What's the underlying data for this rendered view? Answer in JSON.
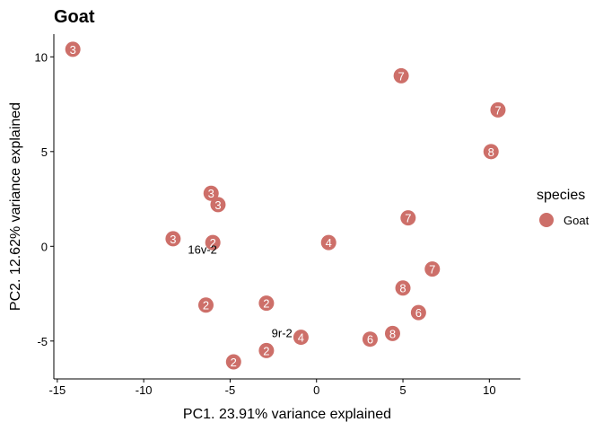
{
  "chart_data": {
    "type": "scatter",
    "title": "Goat",
    "xlabel": "PC1. 23.91% variance explained",
    "ylabel": "PC2. 12.62% variance explained",
    "xlim": [
      -15.2,
      11.8
    ],
    "ylim": [
      -7.0,
      11.2
    ],
    "xticks": [
      -15,
      -10,
      -5,
      0,
      5,
      10
    ],
    "yticks": [
      -5,
      0,
      5,
      10
    ],
    "grid": false,
    "point_color": "#CD6F69",
    "legend": {
      "title": "species",
      "entries": [
        {
          "label": "Goat",
          "color": "#CD6F69"
        }
      ],
      "position": "right"
    },
    "series": [
      {
        "name": "Goat",
        "points": [
          {
            "x": -14.1,
            "y": 10.4,
            "label": "3"
          },
          {
            "x": 4.9,
            "y": 9.0,
            "label": "7"
          },
          {
            "x": 10.5,
            "y": 7.2,
            "label": "7"
          },
          {
            "x": 10.1,
            "y": 5.0,
            "label": "8"
          },
          {
            "x": -6.1,
            "y": 2.8,
            "label": "3"
          },
          {
            "x": -5.7,
            "y": 2.2,
            "label": "3"
          },
          {
            "x": 5.3,
            "y": 1.5,
            "label": "7"
          },
          {
            "x": -8.3,
            "y": 0.4,
            "label": "3"
          },
          {
            "x": -6.0,
            "y": 0.2,
            "label": "2"
          },
          {
            "x": 0.7,
            "y": 0.2,
            "label": "4"
          },
          {
            "x": 6.7,
            "y": -1.2,
            "label": "7"
          },
          {
            "x": 5.0,
            "y": -2.2,
            "label": "8"
          },
          {
            "x": -6.4,
            "y": -3.1,
            "label": "2"
          },
          {
            "x": -2.9,
            "y": -3.0,
            "label": "2"
          },
          {
            "x": 5.9,
            "y": -3.5,
            "label": "6"
          },
          {
            "x": 4.4,
            "y": -4.6,
            "label": "8"
          },
          {
            "x": 3.1,
            "y": -4.9,
            "label": "6"
          },
          {
            "x": -0.9,
            "y": -4.8,
            "label": "4"
          },
          {
            "x": -2.9,
            "y": -5.5,
            "label": "2"
          },
          {
            "x": -4.8,
            "y": -6.1,
            "label": "2"
          }
        ]
      }
    ],
    "annotations": [
      {
        "text": "16v-2",
        "x": -6.6,
        "y": -0.4
      },
      {
        "text": "9r-2",
        "x": -2.0,
        "y": -4.8
      }
    ]
  }
}
